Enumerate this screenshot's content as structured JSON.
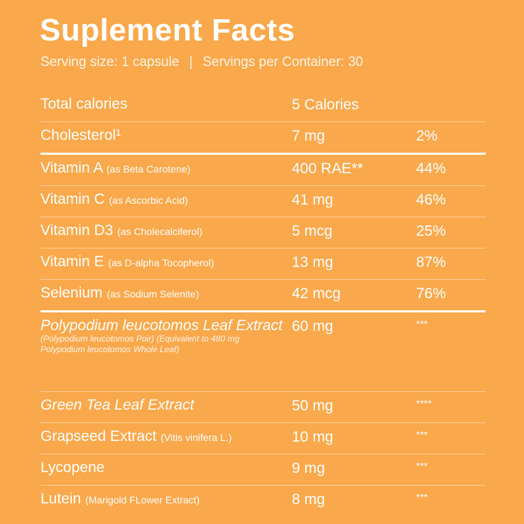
{
  "title": "Suplement Facts",
  "serving": {
    "size": "Serving size: 1 capsule",
    "separator": "|",
    "per_container": "Servings per Container: 30"
  },
  "colors": {
    "background": "#F9A84B",
    "text": "#FFFFFF"
  },
  "rows": [
    {
      "name": "Total calories",
      "note": "",
      "amount": "5 Calories",
      "dv": ""
    },
    {
      "name": "Cholesterol¹",
      "note": "",
      "amount": "7 mg",
      "dv": "2%"
    },
    {
      "name": "Vitamin A",
      "note": "(as Beta Carotene)",
      "amount": "400 RAE**",
      "dv": "44%"
    },
    {
      "name": "Vitamin C",
      "note": "(as Ascorbic Acid)",
      "amount": "41 mg",
      "dv": "46%"
    },
    {
      "name": "Vitamin D3",
      "note": "(as Cholecalciferol)",
      "amount": "5 mcg",
      "dv": "25%"
    },
    {
      "name": "Vitamin E",
      "note": "(as D-alpha Tocopherol)",
      "amount": "13 mg",
      "dv": "87%"
    },
    {
      "name": "Selenium",
      "note": "(as Sodium Selenite)",
      "amount": "42 mcg",
      "dv": "76%"
    },
    {
      "name": "Polypodium leucotomos Leaf Extract",
      "note": "(Polypodium leucotomos Poir) (Equivalent to 480 mg Polypodium leucotomos Whole Leaf)",
      "amount": "60 mg",
      "dv": "***"
    },
    {
      "name": "Green Tea Leaf Extract",
      "note": "",
      "amount": "50 mg",
      "dv": "****"
    },
    {
      "name": "Grapseed Extract",
      "note": "(Vitis vinifera L.)",
      "amount": "10 mg",
      "dv": "***"
    },
    {
      "name": "Lycopene",
      "note": "",
      "amount": "9 mg",
      "dv": "***"
    },
    {
      "name": "Lutein",
      "note": "(Marigold FLower Extract)",
      "amount": "8 mg",
      "dv": "***"
    }
  ]
}
